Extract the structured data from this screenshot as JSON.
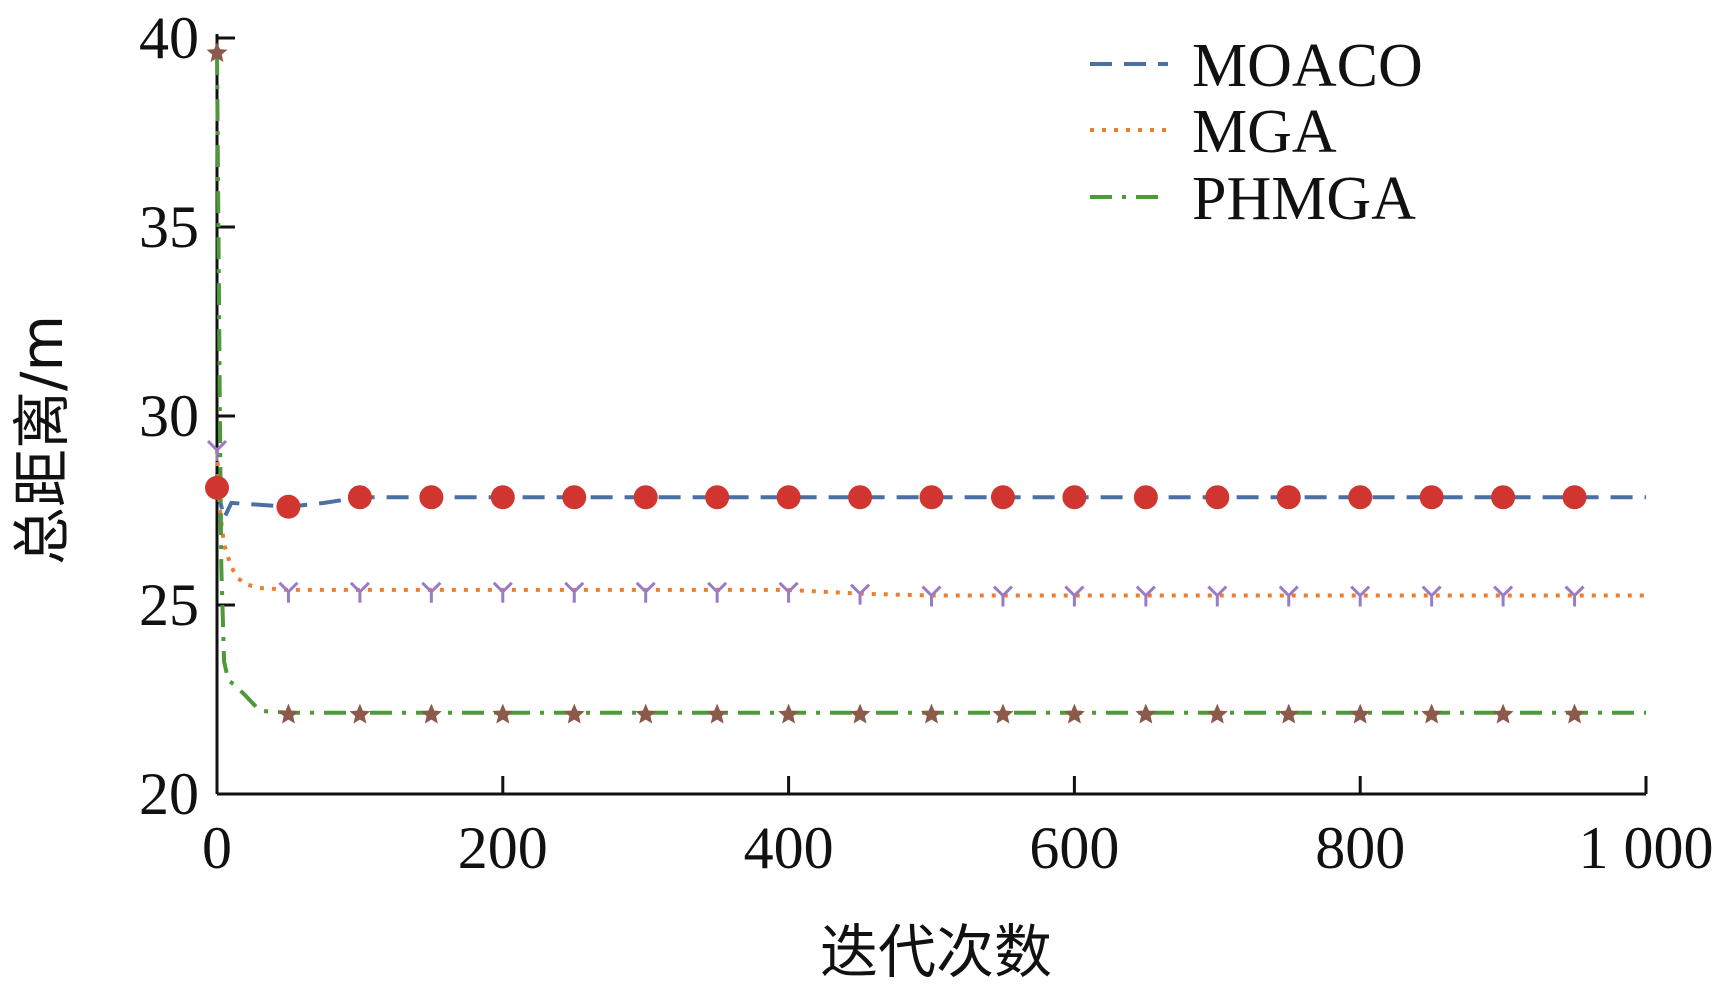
{
  "chart_data": {
    "type": "line",
    "title": "",
    "xlabel": "迭代次数",
    "ylabel": "总距离/m",
    "xlim": [
      0,
      1000
    ],
    "ylim": [
      20,
      40
    ],
    "x_ticks": [
      0,
      200,
      400,
      600,
      800,
      1000
    ],
    "x_tick_labels": [
      "0",
      "200",
      "400",
      "600",
      "800",
      "1 000"
    ],
    "y_ticks": [
      20,
      25,
      30,
      35,
      40
    ],
    "y_tick_labels": [
      "20",
      "25",
      "30",
      "35",
      "40"
    ],
    "grid": false,
    "legend_position": "top-right",
    "series": [
      {
        "name": "MOACO",
        "color": "#4a6fa5",
        "line_style": "dashed",
        "marker": "circle",
        "marker_color": "#d0352f",
        "x": [
          0,
          5,
          10,
          50,
          75,
          100,
          150,
          200,
          250,
          300,
          350,
          400,
          450,
          500,
          550,
          600,
          650,
          700,
          750,
          800,
          850,
          900,
          950,
          1000
        ],
        "y": [
          28.1,
          27.3,
          27.7,
          27.6,
          27.7,
          27.85,
          27.85,
          27.85,
          27.85,
          27.85,
          27.85,
          27.85,
          27.85,
          27.85,
          27.85,
          27.85,
          27.85,
          27.85,
          27.85,
          27.85,
          27.85,
          27.85,
          27.85,
          27.85
        ],
        "marker_x": [
          0,
          50,
          100,
          150,
          200,
          250,
          300,
          350,
          400,
          450,
          500,
          550,
          600,
          650,
          700,
          750,
          800,
          850,
          900,
          950
        ],
        "marker_y": [
          28.1,
          27.6,
          27.85,
          27.85,
          27.85,
          27.85,
          27.85,
          27.85,
          27.85,
          27.85,
          27.85,
          27.85,
          27.85,
          27.85,
          27.85,
          27.85,
          27.85,
          27.85,
          27.85,
          27.85
        ]
      },
      {
        "name": "MGA",
        "color": "#ed7d31",
        "line_style": "dotted",
        "marker": "tri-down",
        "marker_color": "#9b7bc4",
        "x": [
          0,
          2,
          5,
          10,
          15,
          20,
          30,
          50,
          100,
          200,
          300,
          400,
          450,
          500,
          600,
          700,
          800,
          900,
          1000
        ],
        "y": [
          29.1,
          27.5,
          26.6,
          26.0,
          25.7,
          25.55,
          25.45,
          25.4,
          25.4,
          25.4,
          25.4,
          25.4,
          25.3,
          25.25,
          25.25,
          25.25,
          25.25,
          25.25,
          25.25
        ],
        "marker_x": [
          0,
          50,
          100,
          150,
          200,
          250,
          300,
          350,
          400,
          450,
          500,
          550,
          600,
          650,
          700,
          750,
          800,
          850,
          900,
          950
        ],
        "marker_y": [
          29.1,
          25.35,
          25.35,
          25.35,
          25.35,
          25.35,
          25.35,
          25.35,
          25.35,
          25.3,
          25.25,
          25.25,
          25.25,
          25.25,
          25.25,
          25.25,
          25.25,
          25.25,
          25.25,
          25.25
        ]
      },
      {
        "name": "PHMGA",
        "color": "#4e9a3a",
        "line_style": "dash-dot",
        "marker": "star",
        "marker_color": "#8b5a4a",
        "x": [
          0,
          1,
          2,
          3,
          5,
          8,
          12,
          20,
          30,
          50,
          100,
          200,
          400,
          600,
          800,
          1000
        ],
        "y": [
          39.6,
          35.0,
          30.0,
          26.0,
          23.5,
          23.0,
          22.9,
          22.6,
          22.2,
          22.15,
          22.15,
          22.15,
          22.15,
          22.15,
          22.15,
          22.15
        ],
        "marker_x": [
          0,
          50,
          100,
          150,
          200,
          250,
          300,
          350,
          400,
          450,
          500,
          550,
          600,
          650,
          700,
          750,
          800,
          850,
          900,
          950
        ],
        "marker_y": [
          39.6,
          22.1,
          22.1,
          22.1,
          22.1,
          22.1,
          22.1,
          22.1,
          22.1,
          22.1,
          22.1,
          22.1,
          22.1,
          22.1,
          22.1,
          22.1,
          22.1,
          22.1,
          22.1,
          22.1
        ]
      }
    ]
  }
}
